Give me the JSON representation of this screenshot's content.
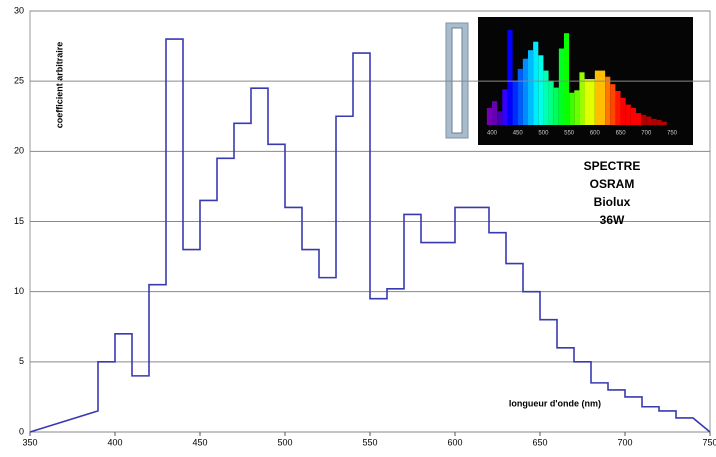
{
  "chart_data": {
    "type": "line",
    "y_label": "coefficient arbitraire",
    "x_label": "longueur d'onde (nm)",
    "annotation": [
      "SPECTRE",
      "OSRAM",
      "Biolux",
      "36W"
    ],
    "x": [
      350,
      390,
      390,
      400,
      400,
      410,
      410,
      420,
      420,
      430,
      430,
      440,
      440,
      450,
      450,
      460,
      460,
      470,
      470,
      480,
      480,
      490,
      490,
      500,
      500,
      510,
      510,
      520,
      520,
      530,
      530,
      540,
      540,
      550,
      550,
      560,
      560,
      570,
      570,
      580,
      580,
      600,
      600,
      620,
      620,
      630,
      630,
      640,
      640,
      650,
      650,
      660,
      660,
      670,
      670,
      680,
      680,
      690,
      690,
      700,
      700,
      710,
      710,
      720,
      720,
      730,
      730,
      740,
      750
    ],
    "values": [
      0,
      1.5,
      5,
      5,
      7,
      7,
      4,
      4,
      10.5,
      10.5,
      28,
      28,
      13,
      13,
      16.5,
      16.5,
      19.5,
      19.5,
      22,
      22,
      24.5,
      24.5,
      20.5,
      20.5,
      16,
      16,
      13,
      13,
      11,
      11,
      22.5,
      22.5,
      27,
      27,
      9.5,
      9.5,
      10.2,
      10.2,
      15.5,
      15.5,
      13.5,
      13.5,
      16,
      16,
      14.2,
      14.2,
      12,
      12,
      10,
      10,
      8,
      8,
      6,
      6,
      5,
      5,
      3.5,
      3.5,
      3,
      3,
      2.5,
      2.5,
      1.8,
      1.8,
      1.5,
      1.5,
      1,
      1,
      0
    ],
    "color": "#3a3ab0",
    "xlim": [
      350,
      750
    ],
    "ylim": [
      0,
      30
    ],
    "xticks": [
      350,
      400,
      450,
      500,
      550,
      600,
      650,
      700,
      750
    ],
    "yticks": [
      0,
      5,
      10,
      15,
      20,
      25,
      30
    ],
    "grid": true,
    "inset_ticks": [
      400,
      450,
      500,
      550,
      600,
      650,
      700,
      750
    ]
  }
}
